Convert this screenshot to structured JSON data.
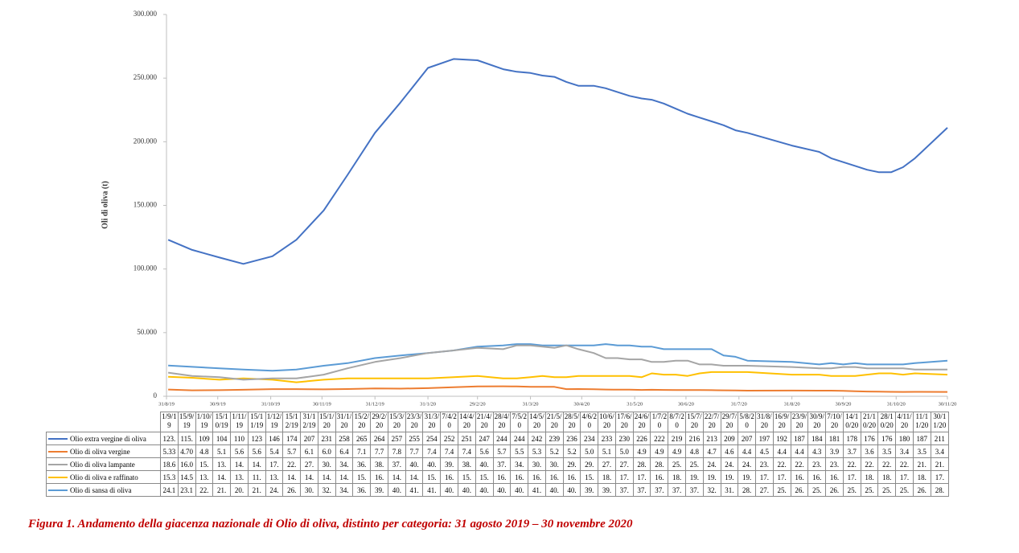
{
  "chart_data": {
    "type": "line",
    "ylabel": "Oli di oliva (t)",
    "caption": "Figura 1. Andamento della giacenza nazionale di Olio di oliva, distinto per categoria: 31 agosto 2019 – 30 novembre 2020",
    "x": [
      "1/9/19",
      "15/9/19",
      "1/10/19",
      "15/10/19",
      "1/11/19",
      "15/11/19",
      "1/12/19",
      "15/12/19",
      "31/12/19",
      "15/1/20",
      "31/1/20",
      "15/2/20",
      "29/2/20",
      "15/3/20",
      "23/3/20",
      "31/3/20",
      "7/4/20",
      "14/4/20",
      "21/4/20",
      "28/4/20",
      "7/5/20",
      "14/5/20",
      "21/5/20",
      "28/5/20",
      "4/6/20",
      "10/6/20",
      "17/6/20",
      "24/6/20",
      "1/7/20",
      "8/7/20",
      "15/7/20",
      "22/7/20",
      "29/7/20",
      "5/8/20",
      "31/8/20",
      "16/9/20",
      "23/9/20",
      "30/9/20",
      "7/10/20",
      "14/10/20",
      "21/10/20",
      "28/10/20",
      "4/11/20",
      "11/11/20",
      "30/11/20"
    ],
    "xlim": [
      "31/8/19",
      "30/11/20"
    ],
    "xticks": [
      "31/8/19",
      "30/9/19",
      "31/10/19",
      "30/11/19",
      "31/12/19",
      "31/1/20",
      "29/2/20",
      "31/3/20",
      "30/4/20",
      "31/5/20",
      "30/6/20",
      "31/7/20",
      "31/8/20",
      "30/9/20",
      "31/10/20",
      "30/11/20"
    ],
    "ylim": [
      0,
      300000
    ],
    "yticks": [
      0,
      {
        "value": 50000,
        "label": "50.000"
      },
      {
        "value": 100000,
        "label": "100.000"
      },
      {
        "value": 150000,
        "label": "150.000"
      },
      {
        "value": 200000,
        "label": "200.000"
      },
      {
        "value": 250000,
        "label": "250.000"
      },
      {
        "value": 300000,
        "label": "300.000"
      }
    ],
    "grid": false,
    "series": [
      {
        "name": "Olio extra vergine di oliva",
        "color": "#4472c4",
        "values": [
          123000,
          115000,
          109000,
          104000,
          110000,
          123000,
          146000,
          174000,
          207000,
          231000,
          258000,
          265000,
          264000,
          257000,
          255000,
          254000,
          252000,
          251000,
          247000,
          244000,
          244000,
          242000,
          239000,
          236000,
          234000,
          233000,
          230000,
          226000,
          222000,
          219000,
          216000,
          213000,
          209000,
          207000,
          197000,
          192000,
          187000,
          184000,
          181000,
          178000,
          176000,
          176000,
          180000,
          187000,
          211000
        ],
        "value_labels": [
          "123.",
          "115.",
          "109",
          "104",
          "110",
          "123",
          "146",
          "174",
          "207",
          "231",
          "258",
          "265",
          "264",
          "257",
          "255",
          "254",
          "252",
          "251",
          "247",
          "244",
          "244",
          "242",
          "239",
          "236",
          "234",
          "233",
          "230",
          "226",
          "222",
          "219",
          "216",
          "213",
          "209",
          "207",
          "197",
          "192",
          "187",
          "184",
          "181",
          "178",
          "176",
          "176",
          "180",
          "187",
          "211"
        ]
      },
      {
        "name": "Olio di oliva vergine",
        "color": "#ed7d31",
        "values": [
          5330,
          4700,
          4800,
          5100,
          5600,
          5600,
          5400,
          5700,
          6100,
          6000,
          6400,
          7100,
          7700,
          7800,
          7700,
          7400,
          7400,
          7400,
          5600,
          5700,
          5500,
          5300,
          5200,
          5200,
          5000,
          5100,
          5000,
          4900,
          4900,
          4900,
          4800,
          4700,
          4600,
          4400,
          4500,
          4400,
          4400,
          4300,
          3900,
          3700,
          3600,
          3500,
          3400,
          3500,
          3400
        ],
        "value_labels": [
          "5.33",
          "4.70",
          "4.8",
          "5.1",
          "5.6",
          "5.6",
          "5.4",
          "5.7",
          "6.1",
          "6.0",
          "6.4",
          "7.1",
          "7.7",
          "7.8",
          "7.7",
          "7.4",
          "7.4",
          "7.4",
          "5.6",
          "5.7",
          "5.5",
          "5.3",
          "5.2",
          "5.2",
          "5.0",
          "5.1",
          "5.0",
          "4.9",
          "4.9",
          "4.9",
          "4.8",
          "4.7",
          "4.6",
          "4.4",
          "4.5",
          "4.4",
          "4.4",
          "4.3",
          "3.9",
          "3.7",
          "3.6",
          "3.5",
          "3.4",
          "3.5",
          "3.4"
        ]
      },
      {
        "name": "Olio di oliva lampante",
        "color": "#a5a5a5",
        "values": [
          18600,
          16000,
          15000,
          13000,
          14000,
          14000,
          17000,
          22000,
          27000,
          30000,
          34000,
          36000,
          38000,
          37000,
          40000,
          40000,
          39000,
          38000,
          40000,
          37000,
          34000,
          30000,
          30000,
          29000,
          29000,
          27000,
          27000,
          28000,
          28000,
          25000,
          25000,
          24000,
          24000,
          24000,
          23000,
          22000,
          22000,
          23000,
          23000,
          22000,
          22000,
          22000,
          22000,
          21000,
          21000
        ],
        "value_labels": [
          "18.6",
          "16.0",
          "15.",
          "13.",
          "14.",
          "14.",
          "17.",
          "22.",
          "27.",
          "30.",
          "34.",
          "36.",
          "38.",
          "37.",
          "40.",
          "40.",
          "39.",
          "38.",
          "40.",
          "37.",
          "34.",
          "30.",
          "30.",
          "29.",
          "29.",
          "27.",
          "27.",
          "28.",
          "28.",
          "25.",
          "25.",
          "24.",
          "24.",
          "24.",
          "23.",
          "22.",
          "22.",
          "23.",
          "23.",
          "22.",
          "22.",
          "22.",
          "22.",
          "21.",
          "21."
        ]
      },
      {
        "name": "Olio di oliva e raffinato",
        "color": "#ffc000",
        "values": [
          15300,
          14500,
          13000,
          14000,
          13000,
          11000,
          13000,
          14000,
          14000,
          14000,
          14000,
          15000,
          16000,
          14000,
          14000,
          15000,
          16000,
          15000,
          15000,
          16000,
          16000,
          16000,
          16000,
          16000,
          15000,
          18000,
          17000,
          17000,
          16000,
          18000,
          19000,
          19000,
          19000,
          19000,
          17000,
          17000,
          16000,
          16000,
          16000,
          17000,
          18000,
          18000,
          17000,
          18000,
          17000
        ],
        "value_labels": [
          "15.3",
          "14.5",
          "13.",
          "14.",
          "13.",
          "11.",
          "13.",
          "14.",
          "14.",
          "14.",
          "14.",
          "15.",
          "16.",
          "14.",
          "14.",
          "15.",
          "16.",
          "15.",
          "15.",
          "16.",
          "16.",
          "16.",
          "16.",
          "16.",
          "15.",
          "18.",
          "17.",
          "17.",
          "16.",
          "18.",
          "19.",
          "19.",
          "19.",
          "19.",
          "17.",
          "17.",
          "16.",
          "16.",
          "16.",
          "17.",
          "18.",
          "18.",
          "17.",
          "18.",
          "17."
        ]
      },
      {
        "name": "Olio di sansa di oliva",
        "color": "#5b9bd5",
        "values": [
          24100,
          23100,
          22000,
          21000,
          20000,
          21000,
          24000,
          26000,
          30000,
          32000,
          34000,
          36000,
          39000,
          40000,
          41000,
          41000,
          40000,
          40000,
          40000,
          40000,
          40000,
          41000,
          40000,
          40000,
          39000,
          39000,
          37000,
          37000,
          37000,
          37000,
          37000,
          32000,
          31000,
          28000,
          27000,
          25000,
          26000,
          25000,
          26000,
          25000,
          25000,
          25000,
          25000,
          26000,
          28000
        ],
        "value_labels": [
          "24.1",
          "23.1",
          "22.",
          "21.",
          "20.",
          "21.",
          "24.",
          "26.",
          "30.",
          "32.",
          "34.",
          "36.",
          "39.",
          "40.",
          "41.",
          "41.",
          "40.",
          "40.",
          "40.",
          "40.",
          "40.",
          "41.",
          "40.",
          "40.",
          "39.",
          "39.",
          "37.",
          "37.",
          "37.",
          "37.",
          "37.",
          "32.",
          "31.",
          "28.",
          "27.",
          "25.",
          "26.",
          "25.",
          "26.",
          "25.",
          "25.",
          "25.",
          "25.",
          "26.",
          "28."
        ]
      }
    ]
  }
}
